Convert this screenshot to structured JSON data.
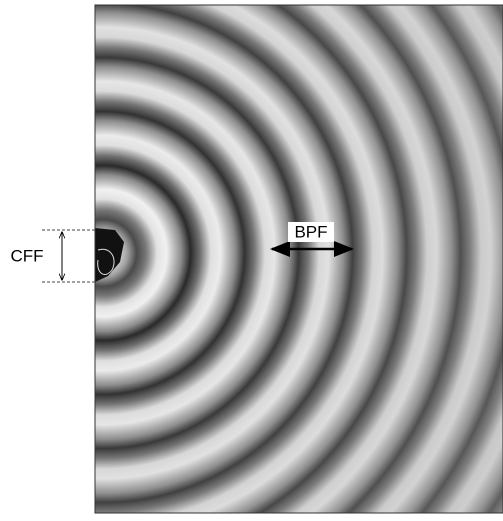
{
  "labels": {
    "cff": "CFF",
    "bpf": "BPF"
  }
}
